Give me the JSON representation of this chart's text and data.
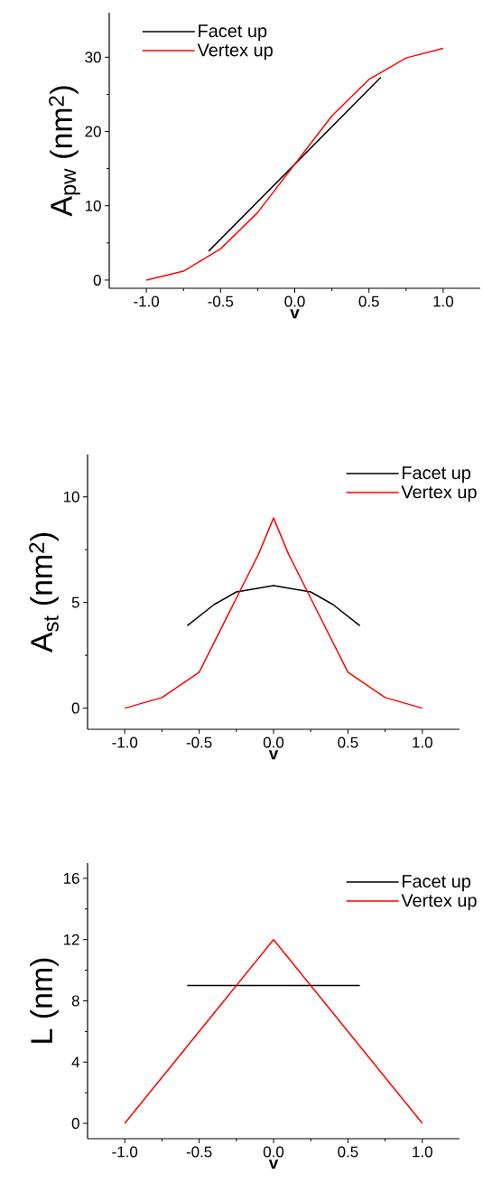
{
  "chart_data": [
    {
      "type": "line",
      "xlabel": "v",
      "ylabel": "A$_{pw}$ (nm$^{2}$)",
      "xlim": [
        -1.25,
        1.25
      ],
      "ylim": [
        -1.1,
        36
      ],
      "xticks": [
        {
          "value": -1,
          "label": "-1.0"
        },
        {
          "value": -0.5,
          "label": "-0.5"
        },
        {
          "value": 0,
          "label": "0.0"
        },
        {
          "value": 0.5,
          "label": "0.5"
        },
        {
          "value": 1,
          "label": "1.0"
        }
      ],
      "yticks": [
        0,
        10,
        20,
        30
      ],
      "legend": "top left",
      "series": [
        {
          "name": "Facet up",
          "color": "#000000",
          "x": [
            -0.58,
            0.58
          ],
          "values": [
            3.9,
            27.3
          ]
        },
        {
          "name": "Vertex up",
          "color": "#ff0000",
          "x": [
            -1,
            -0.75,
            -0.5,
            -0.25,
            0,
            0.25,
            0.5,
            0.75,
            1
          ],
          "values": [
            0,
            1.2,
            4.2,
            9.1,
            15.6,
            22.1,
            27.0,
            29.9,
            31.2
          ]
        }
      ]
    },
    {
      "type": "line",
      "xlabel": "v",
      "ylabel": "A$_{st}$ (nm$^{2}$)",
      "xlim": [
        -1.25,
        1.25
      ],
      "ylim": [
        -1,
        12
      ],
      "xticks": [
        {
          "value": -1,
          "label": "-1.0"
        },
        {
          "value": -0.5,
          "label": "-0.5"
        },
        {
          "value": 0,
          "label": "0.0"
        },
        {
          "value": 0.5,
          "label": "0.5"
        },
        {
          "value": 1,
          "label": "1.0"
        }
      ],
      "yticks": [
        0,
        5,
        10
      ],
      "legend": "top right",
      "series": [
        {
          "name": "Facet up",
          "color": "#000000",
          "x": [
            -0.58,
            -0.4,
            -0.25,
            0,
            0.25,
            0.4,
            0.58
          ],
          "values": [
            3.9,
            4.9,
            5.5,
            5.8,
            5.5,
            4.9,
            3.9
          ]
        },
        {
          "name": "Vertex up",
          "color": "#ff0000",
          "x": [
            -1,
            -0.75,
            -0.5,
            -0.25,
            -0.1,
            0,
            0.1,
            0.25,
            0.5,
            0.75,
            1
          ],
          "values": [
            0,
            0.5,
            1.7,
            5.2,
            7.3,
            9,
            7.3,
            5.2,
            1.7,
            0.5,
            0
          ]
        }
      ]
    },
    {
      "type": "line",
      "xlabel": "v",
      "ylabel": "L (nm)",
      "xlim": [
        -1.25,
        1.25
      ],
      "ylim": [
        -1,
        17
      ],
      "xticks": [
        {
          "value": -1,
          "label": "-1.0"
        },
        {
          "value": -0.5,
          "label": "-0.5"
        },
        {
          "value": 0,
          "label": "0.0"
        },
        {
          "value": 0.5,
          "label": "0.5"
        },
        {
          "value": 1,
          "label": "1.0"
        }
      ],
      "yticks": [
        0,
        4,
        8,
        12,
        16
      ],
      "legend": "top right",
      "series": [
        {
          "name": "Facet up",
          "color": "#000000",
          "x": [
            -0.58,
            0.58
          ],
          "values": [
            9,
            9
          ]
        },
        {
          "name": "Vertex up",
          "color": "#ff0000",
          "x": [
            -1,
            0,
            1
          ],
          "values": [
            0,
            12,
            0
          ]
        }
      ]
    }
  ]
}
